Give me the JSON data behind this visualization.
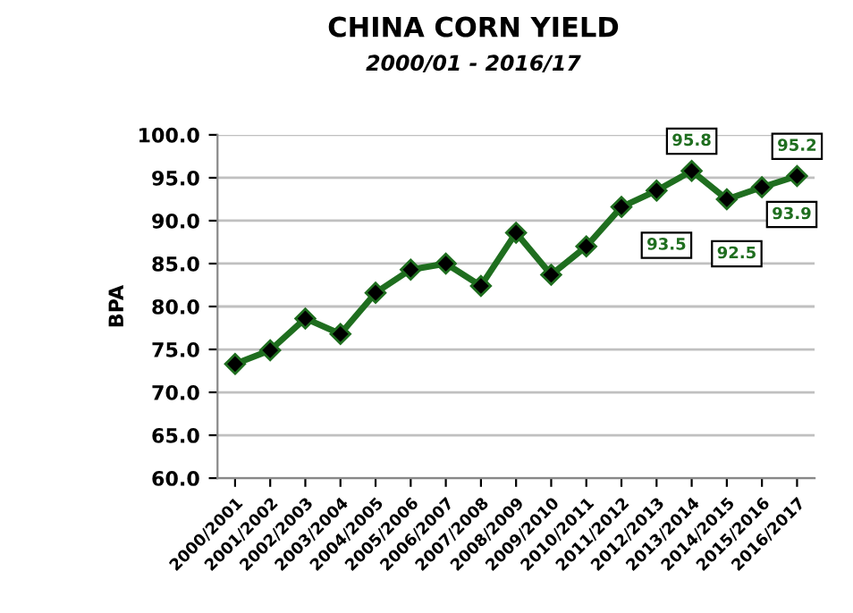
{
  "chart_data": {
    "type": "line",
    "title": "CHINA CORN YIELD",
    "subtitle": "2000/01 - 2016/17",
    "ylabel": "BPA",
    "categories": [
      "2000/2001",
      "2001/2002",
      "2002/2003",
      "2003/2004",
      "2004/2005",
      "2005/2006",
      "2006/2007",
      "2007/2008",
      "2008/2009",
      "2009/2010",
      "2010/2011",
      "2011/2012",
      "2012/2013",
      "2013/2014",
      "2014/2015",
      "2015/2016",
      "2016/2017"
    ],
    "series": [
      {
        "color": "#1f6e1f",
        "values": [
          73.3,
          74.9,
          78.6,
          76.8,
          81.6,
          84.3,
          85.0,
          82.4,
          88.6,
          83.7,
          87.0,
          91.6,
          93.5,
          95.8,
          92.5,
          93.9,
          95.2
        ],
        "value_labels": [
          null,
          null,
          null,
          null,
          null,
          null,
          null,
          null,
          null,
          null,
          null,
          null,
          "93.5",
          "95.8",
          "92.5",
          "93.9",
          "95.2"
        ]
      }
    ],
    "ylim": [
      60,
      100
    ],
    "yticks": [
      {
        "value": 60,
        "label": "60.0"
      },
      {
        "value": 65,
        "label": "65.0"
      },
      {
        "value": 70,
        "label": "70.0"
      },
      {
        "value": 75,
        "label": "75.0"
      },
      {
        "value": 80,
        "label": "80.0"
      },
      {
        "value": 85,
        "label": "85.0"
      },
      {
        "value": 90,
        "label": "90.0"
      },
      {
        "value": 95,
        "label": "95.0"
      },
      {
        "value": 100,
        "label": "100.0"
      }
    ],
    "grid": "y",
    "marker": "diamond",
    "line_style": "solid",
    "legend": false
  }
}
